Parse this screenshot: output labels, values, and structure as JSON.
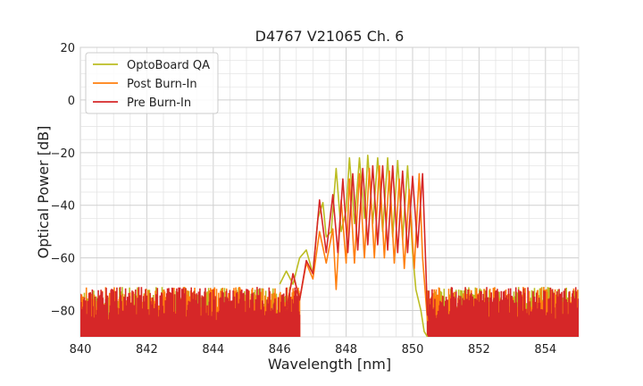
{
  "chart_data": {
    "type": "line",
    "title": "D4767 V21065 Ch. 6",
    "xlabel": "Wavelength [nm]",
    "ylabel": "Optical Power [dB]",
    "xlim": [
      840,
      855
    ],
    "ylim": [
      -90,
      20
    ],
    "xticks": [
      840,
      842,
      844,
      846,
      848,
      850,
      852,
      854
    ],
    "yticks": [
      20,
      0,
      -20,
      -40,
      -60,
      -80
    ],
    "xtick_labels": [
      "840",
      "842",
      "844",
      "846",
      "848",
      "850",
      "852",
      "854"
    ],
    "ytick_labels": [
      "20",
      "0",
      "−20",
      "−40",
      "−60",
      "−80"
    ],
    "grid": true,
    "legend_position": "top-left",
    "series": [
      {
        "name": "OptoBoard QA",
        "color": "#bcbd22",
        "x": [
          846.0,
          846.2,
          846.4,
          846.6,
          846.8,
          847.0,
          847.15,
          847.3,
          847.4,
          847.55,
          847.7,
          847.85,
          848.0,
          848.1,
          848.25,
          848.4,
          848.55,
          848.65,
          848.8,
          848.95,
          849.1,
          849.25,
          849.4,
          849.55,
          849.7,
          849.85,
          850.0,
          850.1,
          850.25,
          850.35,
          850.45
        ],
        "y": [
          -70,
          -65,
          -70,
          -60,
          -57,
          -66,
          -45,
          -39,
          -52,
          -50,
          -26,
          -50,
          -42,
          -22,
          -47,
          -22,
          -45,
          -21,
          -47,
          -22,
          -50,
          -22,
          -52,
          -23,
          -53,
          -25,
          -58,
          -72,
          -80,
          -88,
          -90
        ]
      },
      {
        "name": "Post Burn-In",
        "color": "#ff7f0e",
        "x": [
          846.2,
          846.4,
          846.6,
          846.8,
          847.0,
          847.2,
          847.4,
          847.6,
          847.7,
          847.85,
          848.0,
          848.1,
          848.25,
          848.4,
          848.55,
          848.7,
          848.85,
          849.0,
          849.15,
          849.3,
          849.45,
          849.6,
          849.75,
          849.9,
          850.05,
          850.2,
          850.3,
          850.45
        ],
        "y": [
          -80,
          -66,
          -76,
          -62,
          -68,
          -50,
          -62,
          -49,
          -72,
          -38,
          -62,
          -30,
          -62,
          -28,
          -60,
          -26,
          -60,
          -25,
          -60,
          -27,
          -62,
          -30,
          -64,
          -34,
          -64,
          -28,
          -60,
          -84
        ]
      },
      {
        "name": "Pre Burn-In",
        "color": "#d62728",
        "x": [
          846.2,
          846.4,
          846.6,
          846.8,
          847.0,
          847.2,
          847.4,
          847.6,
          847.75,
          847.9,
          848.05,
          848.2,
          848.35,
          848.5,
          848.65,
          848.8,
          848.95,
          849.1,
          849.25,
          849.4,
          849.55,
          849.7,
          849.85,
          850.0,
          850.15,
          850.3,
          850.45
        ],
        "y": [
          -80,
          -66,
          -76,
          -61,
          -66,
          -38,
          -58,
          -36,
          -58,
          -30,
          -58,
          -28,
          -57,
          -26,
          -55,
          -25,
          -55,
          -25,
          -57,
          -25,
          -58,
          -27,
          -58,
          -29,
          -56,
          -28,
          -82
        ]
      }
    ]
  }
}
